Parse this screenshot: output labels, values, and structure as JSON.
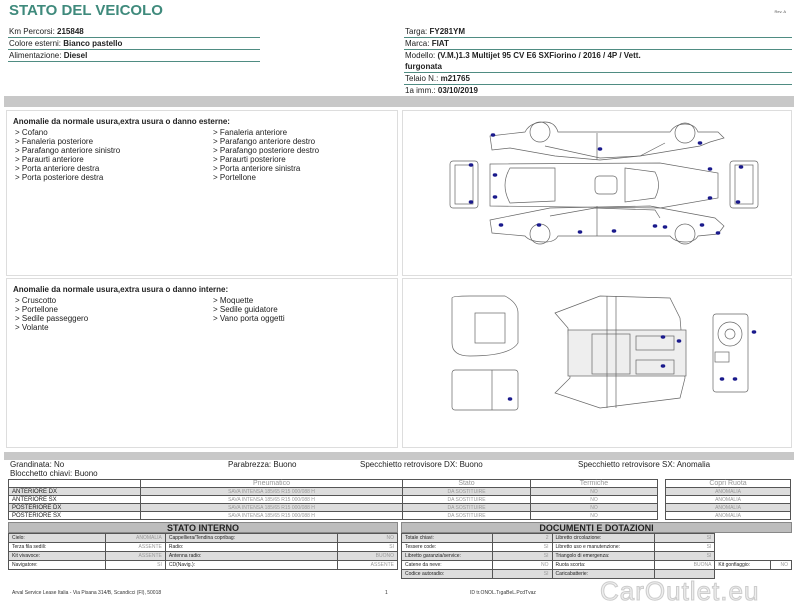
{
  "header": {
    "title": "STATO DEL VEICOLO",
    "revision": "Rev. A"
  },
  "vehicle_left": [
    {
      "label": "Km Percorsi:",
      "value": "215848"
    },
    {
      "label": "Colore esterni:",
      "value": "Bianco pastello"
    },
    {
      "label": "Alimentazione:",
      "value": "Diesel"
    }
  ],
  "vehicle_right": [
    {
      "label": "Targa:",
      "value": "FY281YM"
    },
    {
      "label": "Marca:",
      "value": "FIAT"
    },
    {
      "label": "Modello:",
      "value": "(V.M.)1.3 Multijet 95 CV E6 SXFiorino / 2016 / 4P / Vett."
    },
    {
      "label": "",
      "value": "furgonata"
    },
    {
      "label": "Telaio N.:",
      "value": "m21765"
    },
    {
      "label": "1a imm.:",
      "value": "03/10/2019"
    }
  ],
  "external": {
    "title": "Anomalie da normale usura,extra usura o danno esterne:",
    "items": [
      "> Cofano",
      "> Fanaleria anteriore",
      "> Fanaleria posteriore",
      "> Parafango anteriore destro",
      "> Parafango anteriore sinistro",
      "> Parafango posteriore destro",
      "> Paraurti anteriore",
      "> Paraurti posteriore",
      "> Porta anteriore destra",
      "> Porta anteriore sinistra",
      "> Porta posteriore destra",
      "> Portellone"
    ]
  },
  "internal": {
    "title": "Anomalie da normale usura,extra usura o danno interne:",
    "items": [
      "> Cruscotto",
      "> Moquette",
      "> Portellone",
      "> Sedile guidatore",
      "> Sedile passeggero",
      "> Vano porta oggetti",
      "> Volante"
    ]
  },
  "status": {
    "grandinata": "Grandinata: No",
    "parabrezza": "Parabrezza: Buono",
    "specchietto_dx": "Specchietto retrovisore DX: Buono",
    "specchietto_sx": "Specchietto retrovisore SX: Anomalia",
    "blocchetto": "Blocchetto chiavi: Buono"
  },
  "tyres": {
    "headers": [
      "",
      "Pneumatico",
      "Stato",
      "Termiche"
    ],
    "copri_header": "Copri Ruota",
    "rows": [
      {
        "pos": "ANTERIORE DX",
        "tyre": "SAVA INTENSA 185/65 R15 000/088 H",
        "stato": "DA SOSTITUIRE",
        "termiche": "NO",
        "copri": "ANOMALIA"
      },
      {
        "pos": "ANTERIORE SX",
        "tyre": "SAVA INTENSA 185/65 R15 000/088 H",
        "stato": "DA SOSTITUIRE",
        "termiche": "NO",
        "copri": "ANOMALIA"
      },
      {
        "pos": "POSTERIORE DX",
        "tyre": "SAVA INTENSA 185/65 R15 000/088 H",
        "stato": "DA SOSTITUIRE",
        "termiche": "NO",
        "copri": "ANOMALIA"
      },
      {
        "pos": "POSTERIORE SX",
        "tyre": "SAVA INTENSA 185/65 R15 000/088 H",
        "stato": "DA SOSTITUIRE",
        "termiche": "NO",
        "copri": "ANOMALIA"
      }
    ]
  },
  "interior_state": {
    "title": "STATO INTERNO",
    "rows": [
      [
        "Cielo:",
        "ANOMALIA",
        "Cappelliera/Tendina copribag:",
        "NO"
      ],
      [
        "Terza fila sedili:",
        "ASSENTE",
        "Radio:",
        "SI"
      ],
      [
        "Kit vivavoce:",
        "ASSENTE",
        "Antenna radio:",
        "BUONO"
      ],
      [
        "Navigatore:",
        "SI",
        "CD(Navig.):",
        "ASSENTE"
      ]
    ]
  },
  "documents": {
    "title": "DOCUMENTI E DOTAZIONI",
    "rows": [
      [
        "Totale chiavi:",
        "2",
        "Libretto circolazione:",
        "SI"
      ],
      [
        "Tessere code:",
        "SI",
        "Libretto uso e manutenzione:",
        "SI"
      ],
      [
        "Libretto garanzia/service:",
        "SI",
        "Triangolo di emergenza:",
        "SI"
      ],
      [
        "Catene da neve:",
        "NO",
        "Ruota scorta:",
        "BUONA",
        "Kit gonfiaggio:",
        "NO"
      ],
      [
        "Codice autoradio:",
        "SI",
        "Caricabatterie:",
        ""
      ]
    ]
  },
  "footer": {
    "address": "Arval Service Lease Italia - Via Pisana 314/B, Scandicci (FI), 50018",
    "page": "1",
    "code": "ID tr.ONOL.TıgaBeL.PcdTvaz"
  },
  "watermark": "CarOutlet.eu",
  "colors": {
    "title": "#3f8a7c",
    "damage_dot": "#1a1a8c"
  }
}
